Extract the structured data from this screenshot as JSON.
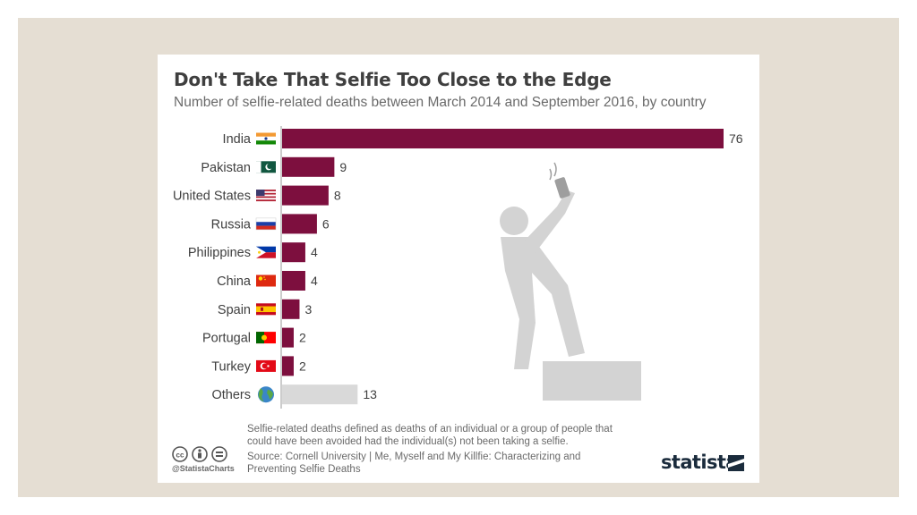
{
  "title": "Don't Take That Selfie Too Close to the Edge",
  "subtitle": "Number of selfie-related deaths between March 2014 and September 2016, by country",
  "note": "Selfie-related deaths defined as deaths of an individual or a group of people that could have been avoided had the individual(s) not been taking a selfie.",
  "source": "Source: Cornell University | Me, Myself and My Killfie: Characterizing and Preventing Selfie Deaths",
  "handle": "@StatistaCharts",
  "brand": "statista",
  "colors": {
    "bar": "#7d0f3e",
    "others_bar": "#d9d9d9",
    "figure": "#d3d3d3",
    "frame": "#e5ded3"
  },
  "icons": [
    "cc-icon",
    "attribution-icon",
    "no-derivatives-icon",
    "statista-logo-icon",
    "selfie-figure-icon",
    "globe-icon"
  ],
  "chart_data": {
    "type": "bar",
    "orientation": "horizontal",
    "title": "Don't Take That Selfie Too Close to the Edge",
    "subtitle": "Number of selfie-related deaths between March 2014 and September 2016, by country",
    "categories": [
      "India",
      "Pakistan",
      "United States",
      "Russia",
      "Philippines",
      "China",
      "Spain",
      "Portugal",
      "Turkey",
      "Others"
    ],
    "values": [
      76,
      9,
      8,
      6,
      4,
      4,
      3,
      2,
      2,
      13
    ],
    "flags": [
      "india-flag-icon",
      "pakistan-flag-icon",
      "usa-flag-icon",
      "russia-flag-icon",
      "philippines-flag-icon",
      "china-flag-icon",
      "spain-flag-icon",
      "portugal-flag-icon",
      "turkey-flag-icon",
      "globe-icon"
    ],
    "highlight_last_gray": true,
    "xlim": [
      0,
      76
    ],
    "grid": false,
    "legend": "none"
  }
}
